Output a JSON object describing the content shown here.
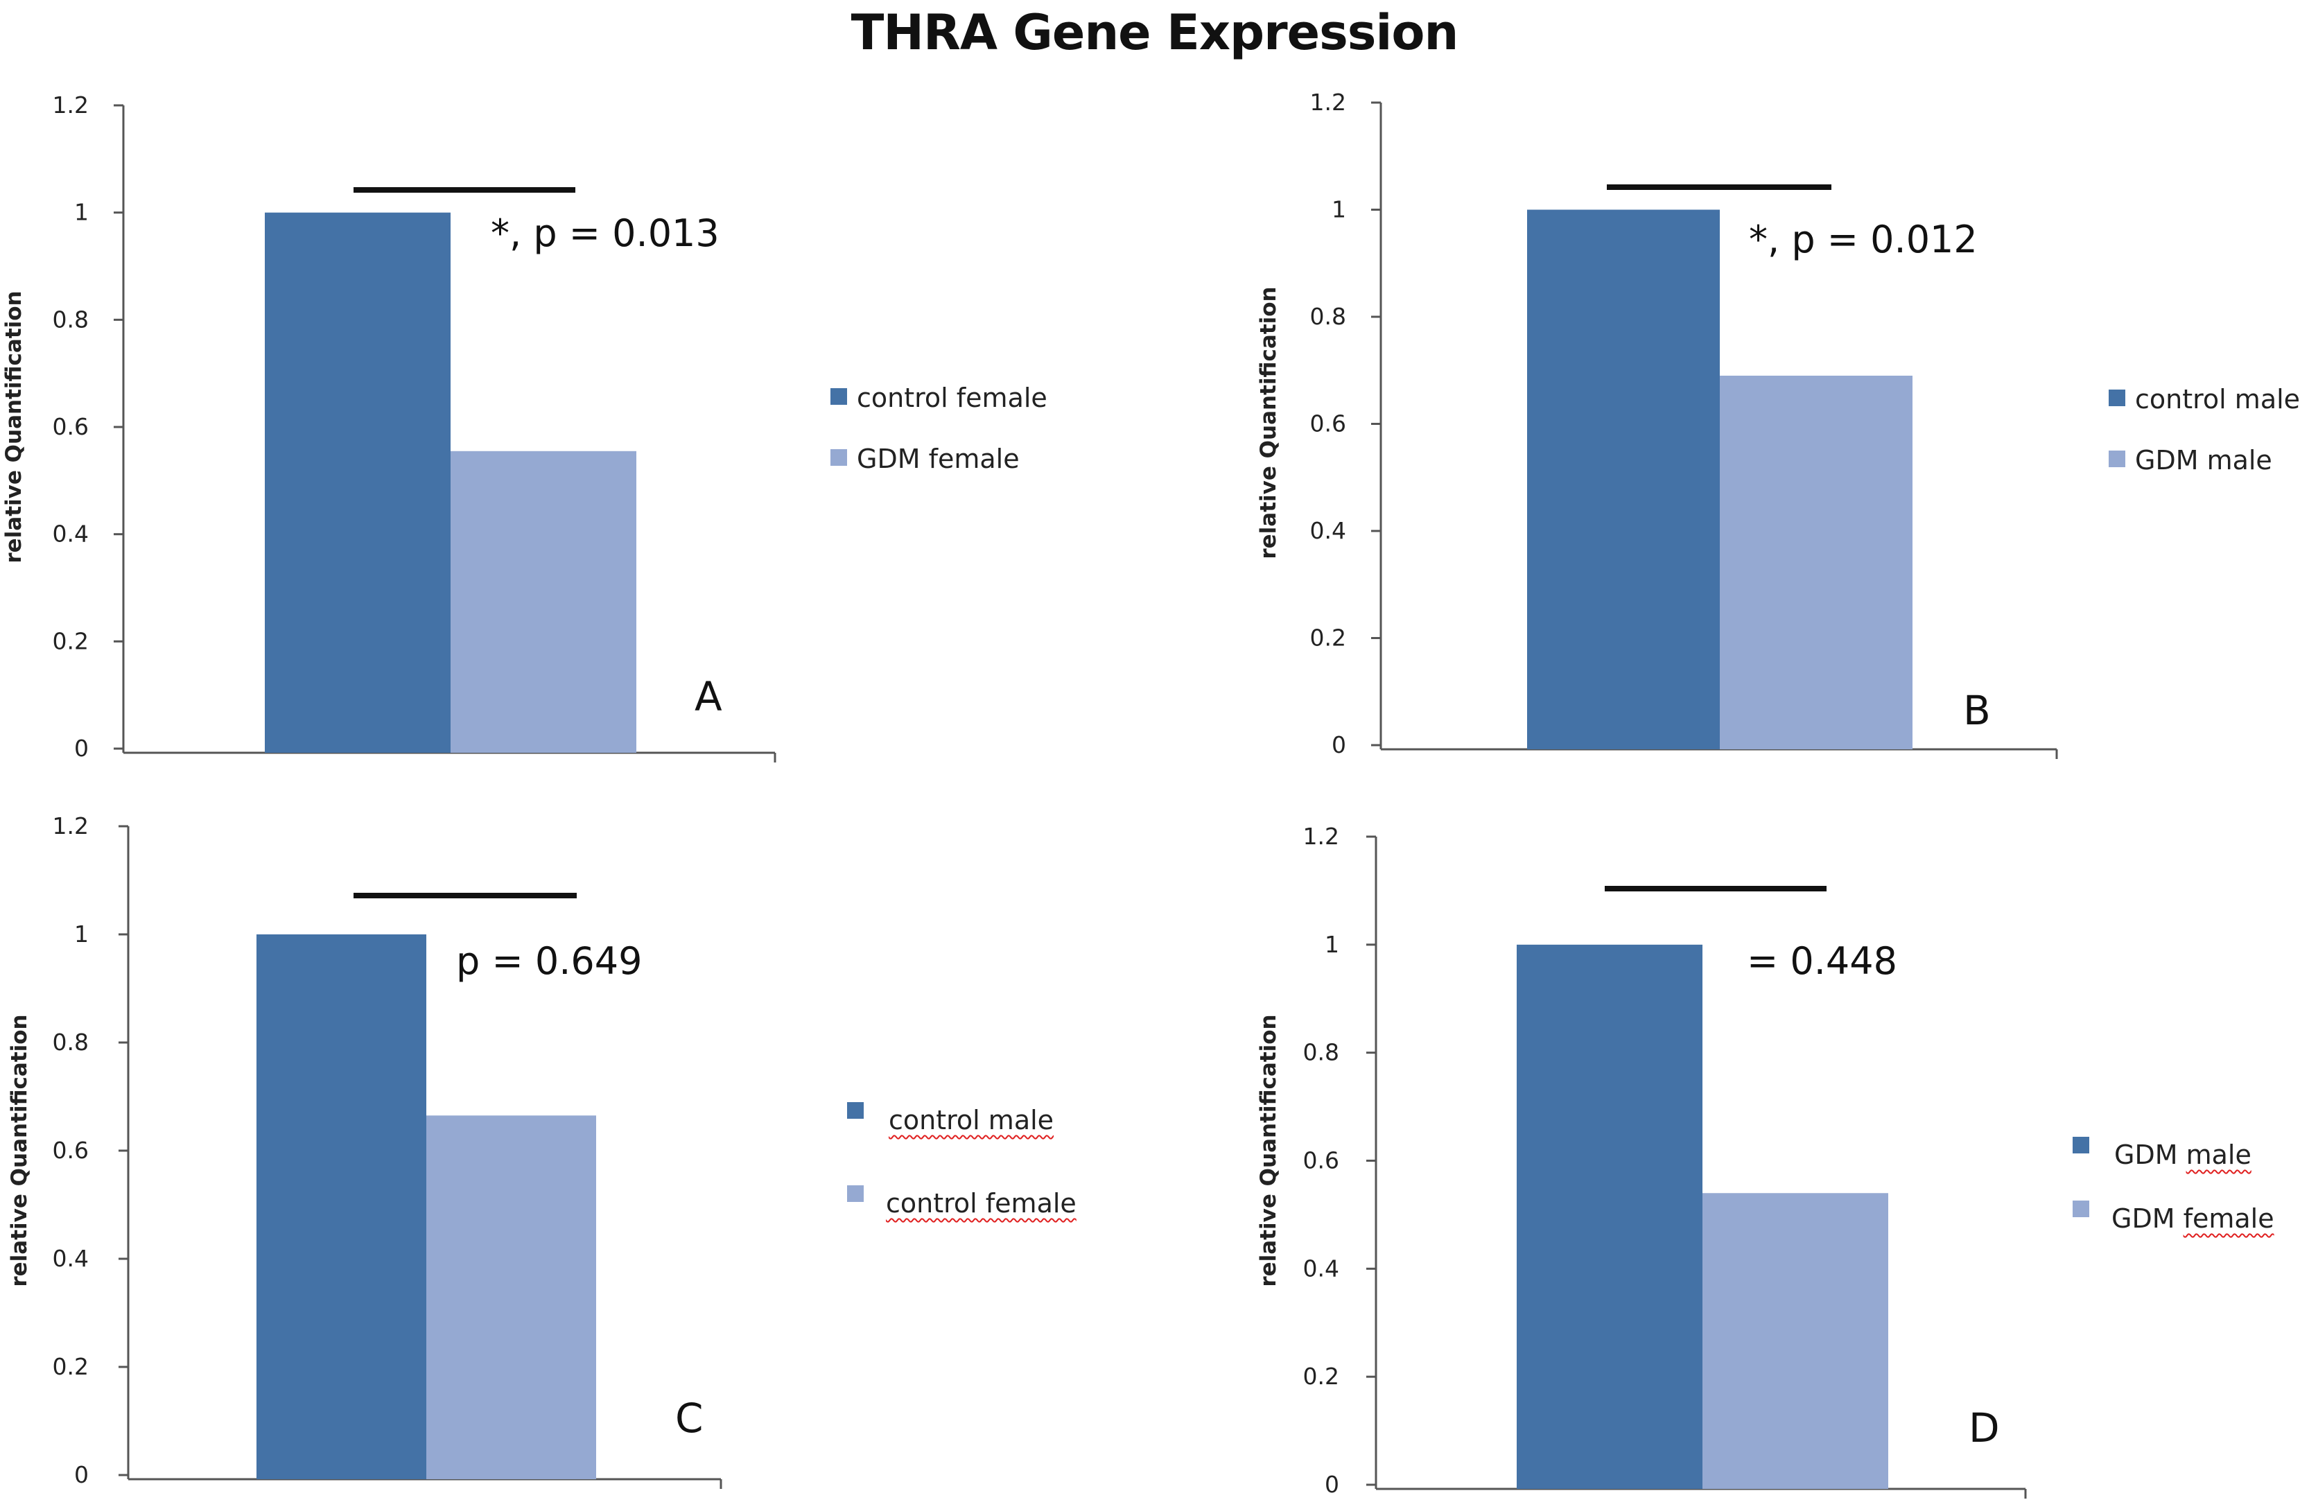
{
  "title": "THRA Gene Expression",
  "colors": {
    "dark_bar": "#4472a6",
    "light_bar": "#95a9d2",
    "axis": "#555555"
  },
  "chart_data": [
    {
      "type": "bar",
      "panel": "A",
      "series": [
        {
          "name": "control female",
          "values": [
            1.0
          ]
        },
        {
          "name": "GDM female",
          "values": [
            0.555
          ]
        }
      ],
      "ylabel": "relative Quantification",
      "ylim": [
        0,
        1.2
      ],
      "yticks": [
        "0",
        "0.2",
        "0.4",
        "0.6",
        "0.8",
        "1",
        "1.2"
      ],
      "annotation": "*, p = 0.013",
      "legend_position": "right"
    },
    {
      "type": "bar",
      "panel": "B",
      "series": [
        {
          "name": "control male",
          "values": [
            1.0
          ]
        },
        {
          "name": "GDM male",
          "values": [
            0.69
          ]
        }
      ],
      "ylabel": "relative Quantification",
      "ylim": [
        0,
        1.2
      ],
      "yticks": [
        "0",
        "0.2",
        "0.4",
        "0.6",
        "0.8",
        "1",
        "1.2"
      ],
      "annotation": "*, p = 0.012",
      "legend_position": "right"
    },
    {
      "type": "bar",
      "panel": "C",
      "series": [
        {
          "name": "control male",
          "values": [
            1.0
          ]
        },
        {
          "name": "control female",
          "values": [
            0.665
          ]
        }
      ],
      "ylabel": "relative Quantification",
      "ylim": [
        0,
        1.2
      ],
      "yticks": [
        "0",
        "0.2",
        "0.4",
        "0.6",
        "0.8",
        "1",
        "1.2"
      ],
      "annotation": "p = 0.649",
      "legend_position": "right"
    },
    {
      "type": "bar",
      "panel": "D",
      "series": [
        {
          "name": "GDM male",
          "values": [
            1.0
          ]
        },
        {
          "name": "GDM female",
          "values": [
            0.54
          ]
        }
      ],
      "ylabel": "relative Quantification",
      "ylim": [
        0,
        1.2
      ],
      "yticks": [
        "0",
        "0.2",
        "0.4",
        "0.6",
        "0.8",
        "1",
        "1.2"
      ],
      "annotation": "= 0.448",
      "legend_position": "right"
    }
  ]
}
